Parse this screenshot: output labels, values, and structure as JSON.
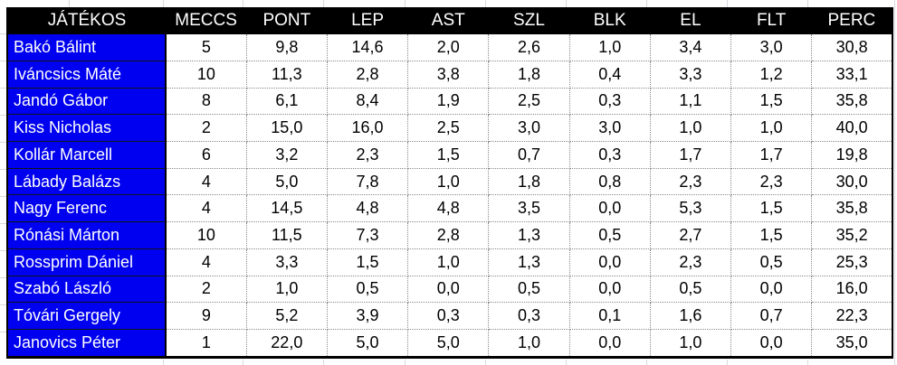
{
  "chart_data": {
    "type": "table",
    "columns": [
      "JÁTÉKOS",
      "MECCS",
      "PONT",
      "LEP",
      "AST",
      "SZL",
      "BLK",
      "EL",
      "FLT",
      "PERC"
    ],
    "rows": [
      {
        "name": "Bakó Bálint",
        "values": [
          "5",
          "9,8",
          "14,6",
          "2,0",
          "2,6",
          "1,0",
          "3,4",
          "3,0",
          "30,8"
        ]
      },
      {
        "name": "Iváncsics Máté",
        "values": [
          "10",
          "11,3",
          "2,8",
          "3,8",
          "1,8",
          "0,4",
          "3,3",
          "1,2",
          "33,1"
        ]
      },
      {
        "name": "Jandó Gábor",
        "values": [
          "8",
          "6,1",
          "8,4",
          "1,9",
          "2,5",
          "0,3",
          "1,1",
          "1,5",
          "35,8"
        ]
      },
      {
        "name": "Kiss Nicholas",
        "values": [
          "2",
          "15,0",
          "16,0",
          "2,5",
          "3,0",
          "3,0",
          "1,0",
          "1,0",
          "40,0"
        ]
      },
      {
        "name": "Kollár Marcell",
        "values": [
          "6",
          "3,2",
          "2,3",
          "1,5",
          "0,7",
          "0,3",
          "1,7",
          "1,7",
          "19,8"
        ]
      },
      {
        "name": "Lábady Balázs",
        "values": [
          "4",
          "5,0",
          "7,8",
          "1,0",
          "1,8",
          "0,8",
          "2,3",
          "2,3",
          "30,0"
        ]
      },
      {
        "name": "Nagy Ferenc",
        "values": [
          "4",
          "14,5",
          "4,8",
          "4,8",
          "3,5",
          "0,0",
          "5,3",
          "1,5",
          "35,8"
        ]
      },
      {
        "name": "Rónási Márton",
        "values": [
          "10",
          "11,5",
          "7,3",
          "2,8",
          "1,3",
          "0,5",
          "2,7",
          "1,5",
          "35,2"
        ]
      },
      {
        "name": "Rossprim Dániel",
        "values": [
          "4",
          "3,3",
          "1,5",
          "1,0",
          "1,3",
          "0,0",
          "2,3",
          "0,5",
          "25,3"
        ]
      },
      {
        "name": "Szabó László",
        "values": [
          "2",
          "1,0",
          "0,5",
          "0,0",
          "0,5",
          "0,0",
          "0,5",
          "0,0",
          "16,0"
        ]
      },
      {
        "name": "Tóvári Gergely",
        "values": [
          "9",
          "5,2",
          "3,9",
          "0,3",
          "0,3",
          "0,1",
          "1,6",
          "0,7",
          "22,3"
        ]
      },
      {
        "name": "Janovics Péter",
        "values": [
          "1",
          "22,0",
          "5,0",
          "5,0",
          "1,0",
          "0,0",
          "1,0",
          "0,0",
          "35,0"
        ]
      }
    ]
  },
  "colors": {
    "header_bg": "#000000",
    "header_text": "#ffffff",
    "name_bg": "#0000f0",
    "name_text": "#ffffff",
    "cell_bg": "#ffffff",
    "cell_text": "#000000",
    "grid_dotted": "#8a8a8a",
    "outer_border": "#000000"
  }
}
